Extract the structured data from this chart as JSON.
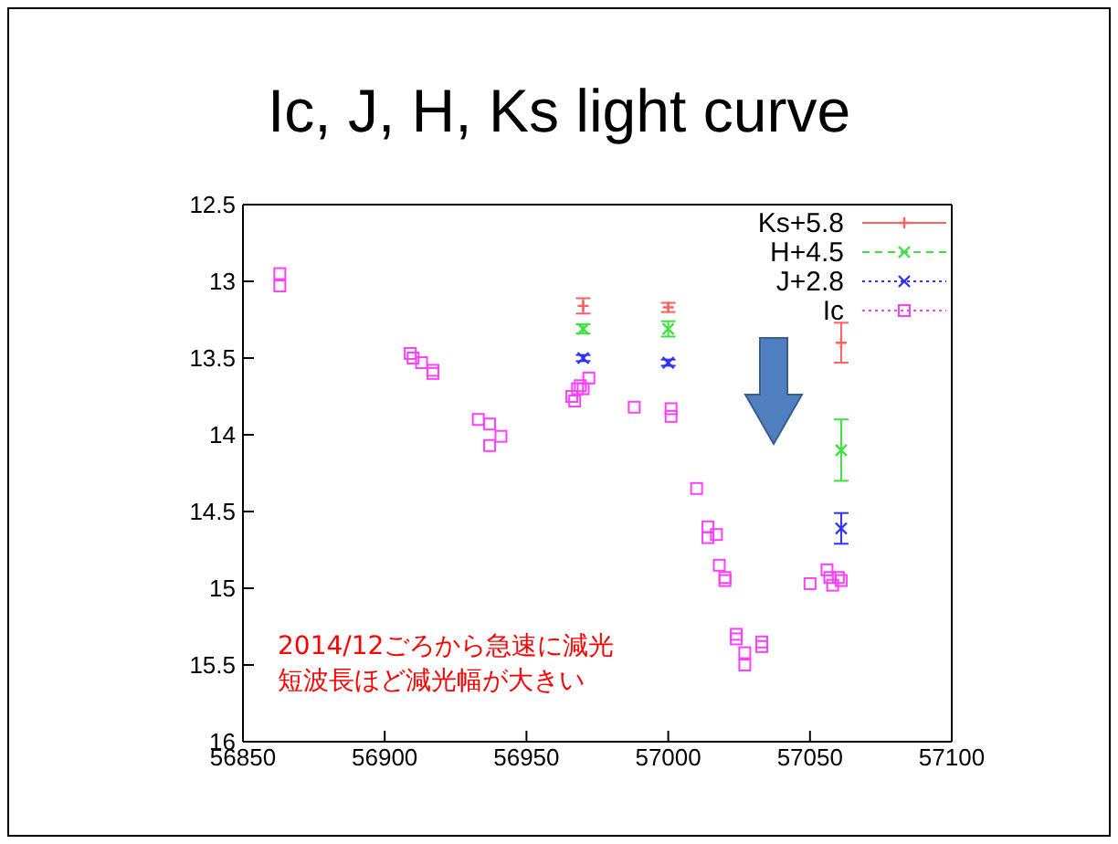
{
  "chart_data": {
    "type": "scatter",
    "title": "Ic, J, H, Ks light curve",
    "xlim": [
      56850,
      57100
    ],
    "xticks": [
      56850,
      56900,
      56950,
      57000,
      57050,
      57100
    ],
    "ylim": [
      16,
      12.5
    ],
    "yticks": [
      12.5,
      13,
      13.5,
      14,
      14.5,
      15,
      15.5,
      16
    ],
    "legend": "top right",
    "annotations": [
      "2014/12ごろから急速に減光",
      "短波長ほど減光幅が大きい"
    ],
    "series": [
      {
        "name": "Ks+5.8",
        "color": "#ff6060",
        "line_style": "solid",
        "x": [
          56970,
          57000,
          57061
        ],
        "values": [
          13.16,
          13.17,
          13.4
        ],
        "errors": [
          0.05,
          0.03,
          0.13
        ]
      },
      {
        "name": "H+4.5",
        "color": "#40e040",
        "marker": "cross",
        "line_style": "dashed",
        "x": [
          56970,
          57000,
          57061
        ],
        "values": [
          13.31,
          13.31,
          14.1
        ],
        "errors": [
          0.03,
          0.05,
          0.2
        ]
      },
      {
        "name": "J+2.8",
        "color": "#3030ff",
        "marker": "cross",
        "line_style": "dotted",
        "x": [
          56970,
          57000,
          57061
        ],
        "values": [
          13.5,
          13.53,
          14.61
        ],
        "errors": [
          0.02,
          0.02,
          0.1
        ]
      },
      {
        "name": "Ic",
        "color": "#ff40ff",
        "marker": "square",
        "line_style": "dotted",
        "x": [
          56863,
          56863,
          56909,
          56910,
          56913,
          56917,
          56917,
          56933,
          56937,
          56937,
          56941,
          56966,
          56967,
          56968,
          56969,
          56970,
          56972,
          56988,
          57001,
          57001,
          57010,
          57014,
          57014,
          57017,
          57018,
          57020,
          57020,
          57024,
          57024,
          57027,
          57027,
          57033,
          57033,
          57050,
          57056,
          57057,
          57058,
          57060,
          57061
        ],
        "values": [
          12.95,
          13.03,
          13.47,
          13.5,
          13.53,
          13.58,
          13.6,
          13.9,
          13.93,
          14.07,
          14.01,
          13.75,
          13.78,
          13.7,
          13.68,
          13.7,
          13.63,
          13.82,
          13.83,
          13.88,
          14.35,
          14.6,
          14.67,
          14.65,
          14.85,
          14.93,
          14.95,
          15.3,
          15.33,
          15.42,
          15.5,
          15.35,
          15.38,
          14.97,
          14.88,
          14.93,
          14.98,
          14.93,
          14.95
        ]
      }
    ]
  }
}
